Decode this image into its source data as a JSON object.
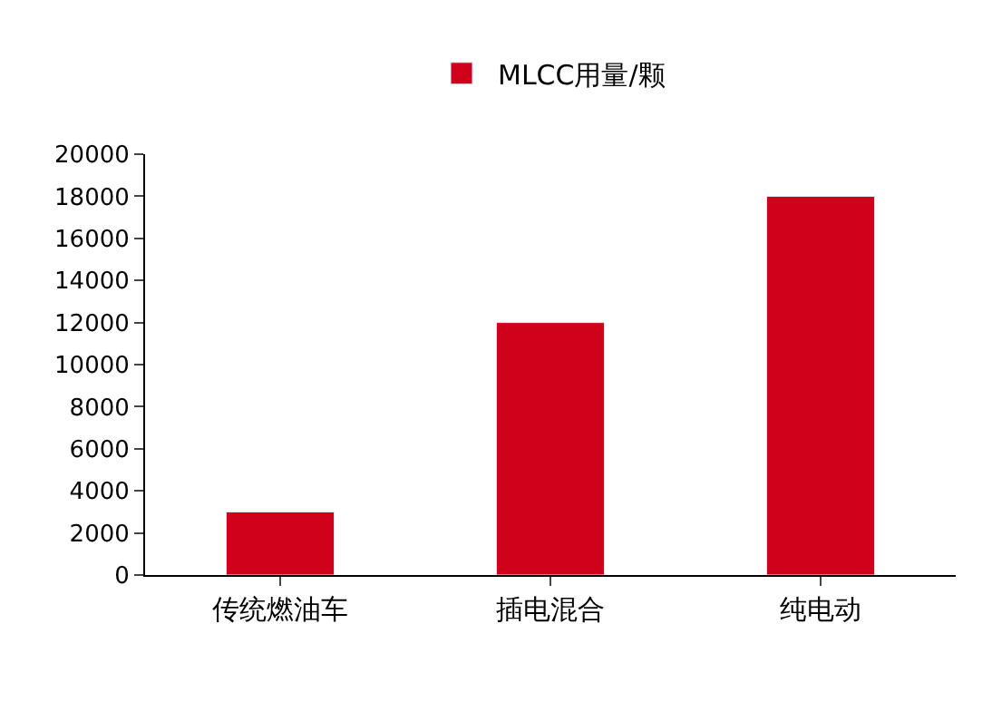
{
  "chart_data": {
    "type": "bar",
    "categories": [
      "传统燃油车",
      "插电混合",
      "纯电动"
    ],
    "series": [
      {
        "name": "MLCC用量/颗",
        "color": "#d0021b",
        "values": [
          3000,
          12000,
          18000
        ]
      }
    ],
    "ylim": [
      0,
      20000
    ],
    "yticks": [
      0,
      2000,
      4000,
      6000,
      8000,
      10000,
      12000,
      14000,
      16000,
      18000,
      20000
    ],
    "grid": false,
    "legend": "top"
  }
}
